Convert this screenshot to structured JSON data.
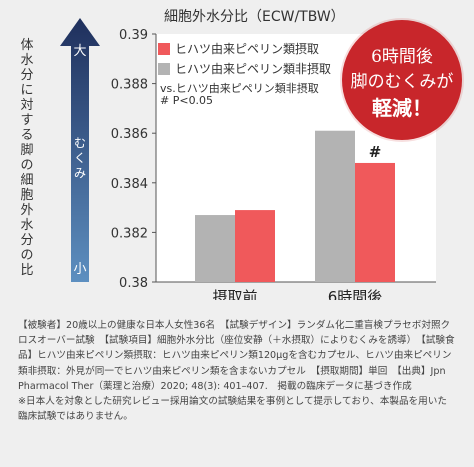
{
  "y_axis_label": "体水分に対する脚の細胞外水分の比",
  "arrow": {
    "top_label": "大",
    "middle_label": "むくみ",
    "bottom_label": "小"
  },
  "badge": {
    "line1": "6時間後",
    "line2": "脚のむくみが",
    "line3": "軽減！"
  },
  "notes": {
    "comparison": "vs.ヒハツ由来ピペリン類非摂取",
    "significance": "# P<0.05"
  },
  "footer": {
    "para1": "【被験者】20歳以上の健康な日本人女性36名　【試験デザイン】ランダム化二重盲検プラセボ対照クロスオーバー試験　【試験項目】細胞外水分比（座位安静（＋水摂取）によりむくみを誘導）　【試験食品】ヒハツ由来ピペリン類摂取：ヒハツ由来ピペリン類120μgを含むカプセル、ヒハツ由来ピペリン類非摂取：外見が同一でヒハツ由来ピペリン類を含まないカプセル　【摂取期間】単回　【出典】Jpn Pharmacol Ther（薬理と治療）2020; 48(3): 401–407.　掲載の臨床データに基づき作成",
    "para2": "※日本人を対象とした研究レビュー採用論文の試験結果を事例として提示しており、本製品を用いた臨床試験ではありません。"
  },
  "colors": {
    "series_intake": "#f0595b",
    "series_non_intake": "#b3b3b3",
    "badge": "#c8262b",
    "arrow_top": "#1f2f5c",
    "arrow_bottom": "#5d8fc0"
  },
  "chart_data": {
    "type": "bar",
    "title": "細胞外水分比（ECW/TBW）",
    "categories": [
      "摂取前",
      "6時間後"
    ],
    "series": [
      {
        "name": "ヒハツ由来ピペリン類摂取",
        "values": [
          0.3829,
          0.3848
        ]
      },
      {
        "name": "ヒハツ由来ピペリン類非摂取",
        "values": [
          0.3827,
          0.3861
        ]
      }
    ],
    "ylim": [
      0.38,
      0.39
    ],
    "y_ticks": [
      "0.39",
      "0.388",
      "0.386",
      "0.384",
      "0.382",
      "0.38"
    ],
    "annotations": [
      {
        "category": "6時間後",
        "series": "ヒハツ由来ピペリン類摂取",
        "text": "#"
      }
    ],
    "grid": false,
    "legend": "top-left"
  }
}
